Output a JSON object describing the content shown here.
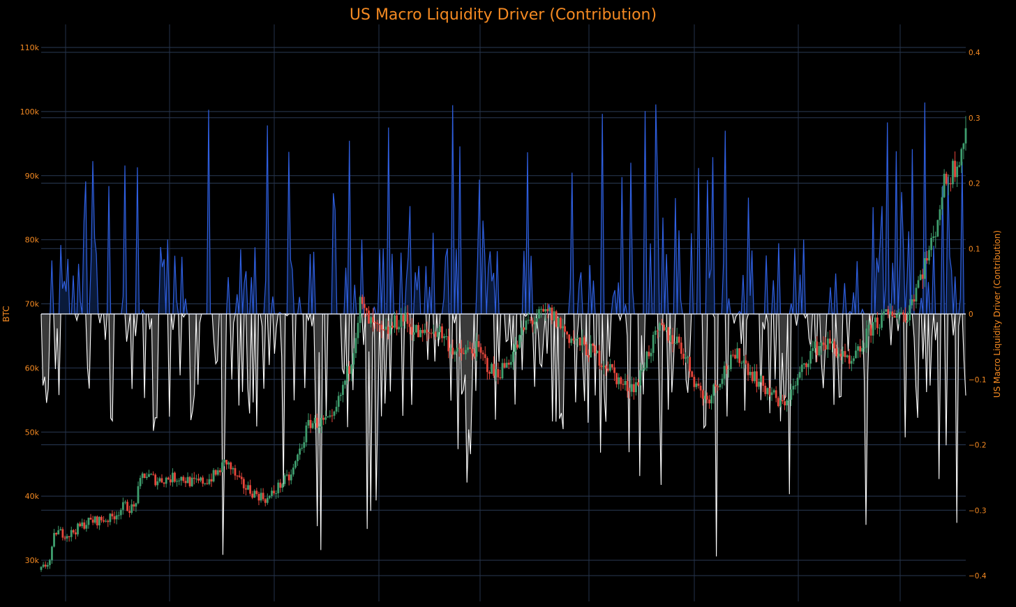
{
  "chart_data": {
    "type": "line",
    "title": "US Macro Liquidity Driver (Contribution)",
    "y_left": {
      "label": "BTC",
      "range": [
        27000,
        112000
      ],
      "ticks": [
        {
          "value": 30000,
          "label": "30k"
        },
        {
          "value": 40000,
          "label": "40k"
        },
        {
          "value": 50000,
          "label": "50k"
        },
        {
          "value": 60000,
          "label": "60k"
        },
        {
          "value": 70000,
          "label": "70k"
        },
        {
          "value": 80000,
          "label": "80k"
        },
        {
          "value": 90000,
          "label": "90k"
        },
        {
          "value": 100000,
          "label": "100k"
        },
        {
          "value": 110000,
          "label": "110k"
        }
      ]
    },
    "y_right": {
      "label": "US Macro Liquidity Driver (Contribution)",
      "range": [
        -0.405,
        0.405
      ],
      "ticks": [
        {
          "value": 0.4,
          "label": "0.4"
        },
        {
          "value": 0.3,
          "label": "0.3"
        },
        {
          "value": 0.2,
          "label": "0.2"
        },
        {
          "value": 0.1,
          "label": "0.1"
        },
        {
          "value": 0,
          "label": "0"
        },
        {
          "value": -0.1,
          "label": "−0.1"
        },
        {
          "value": -0.2,
          "label": "−0.2"
        },
        {
          "value": -0.3,
          "label": "−0.3"
        },
        {
          "value": -0.4,
          "label": "−0.4"
        }
      ]
    },
    "grid": true,
    "colors": {
      "background": "#000000",
      "text": "#f58a22",
      "grid": "#2a3a55",
      "positive_line": "#2f5fe0",
      "positive_fill": "#0a1a3a",
      "negative_line": "#ffffff",
      "negative_fill": "#3a3a3a",
      "candle_up": "#3f9e6e",
      "candle_down": "#e8473c"
    },
    "series": [
      {
        "name": "BTC",
        "kind": "candlestick",
        "anchors": [
          [
            0,
            28500
          ],
          [
            0.01,
            30000
          ],
          [
            0.015,
            34500
          ],
          [
            0.03,
            34000
          ],
          [
            0.05,
            36000
          ],
          [
            0.075,
            36500
          ],
          [
            0.09,
            38500
          ],
          [
            0.1,
            38000
          ],
          [
            0.11,
            43500
          ],
          [
            0.125,
            42500
          ],
          [
            0.15,
            43000
          ],
          [
            0.165,
            42000
          ],
          [
            0.18,
            42500
          ],
          [
            0.19,
            43500
          ],
          [
            0.2,
            45500
          ],
          [
            0.215,
            42000
          ],
          [
            0.23,
            40500
          ],
          [
            0.245,
            39500
          ],
          [
            0.26,
            42000
          ],
          [
            0.27,
            43000
          ],
          [
            0.29,
            51500
          ],
          [
            0.315,
            51500
          ],
          [
            0.335,
            61000
          ],
          [
            0.345,
            70000
          ],
          [
            0.355,
            67000
          ],
          [
            0.37,
            65000
          ],
          [
            0.39,
            68000
          ],
          [
            0.41,
            65000
          ],
          [
            0.43,
            66000
          ],
          [
            0.45,
            62000
          ],
          [
            0.47,
            63000
          ],
          [
            0.49,
            59000
          ],
          [
            0.5,
            60000
          ],
          [
            0.515,
            63500
          ],
          [
            0.525,
            67000
          ],
          [
            0.54,
            68000
          ],
          [
            0.55,
            68500
          ],
          [
            0.56,
            67000
          ],
          [
            0.57,
            65000
          ],
          [
            0.585,
            63500
          ],
          [
            0.6,
            62000
          ],
          [
            0.615,
            60000
          ],
          [
            0.63,
            57000
          ],
          [
            0.645,
            57500
          ],
          [
            0.655,
            62000
          ],
          [
            0.67,
            66000
          ],
          [
            0.69,
            64000
          ],
          [
            0.71,
            57000
          ],
          [
            0.72,
            55000
          ],
          [
            0.74,
            60000
          ],
          [
            0.755,
            62000
          ],
          [
            0.775,
            58000
          ],
          [
            0.79,
            56000
          ],
          [
            0.8,
            54000
          ],
          [
            0.815,
            57000
          ],
          [
            0.83,
            62000
          ],
          [
            0.845,
            64000
          ],
          [
            0.86,
            63000
          ],
          [
            0.875,
            60000
          ],
          [
            0.89,
            64000
          ],
          [
            0.9,
            67000
          ],
          [
            0.91,
            67500
          ],
          [
            0.925,
            69000
          ],
          [
            0.935,
            68000
          ],
          [
            0.945,
            72000
          ],
          [
            0.955,
            76000
          ],
          [
            0.965,
            80000
          ],
          [
            0.975,
            88000
          ],
          [
            0.99,
            92000
          ],
          [
            1.0,
            97000
          ]
        ]
      },
      {
        "name": "US Macro Liquidity Driver (Contribution)",
        "kind": "area",
        "note": "positive in blue, negative in white"
      }
    ]
  }
}
